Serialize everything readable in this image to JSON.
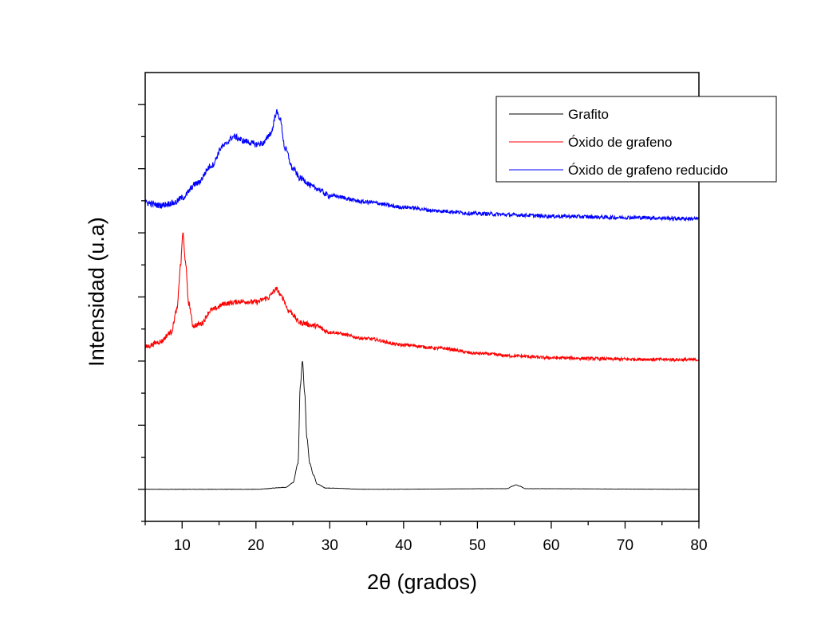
{
  "chart_data": {
    "type": "line",
    "title": "",
    "xlabel": "2θ (grados)",
    "ylabel": "Intensidad (u.a)",
    "xlim": [
      5,
      80
    ],
    "ylim": [
      -0.5,
      6.5
    ],
    "x_ticks": [
      10,
      20,
      30,
      40,
      50,
      60,
      70,
      80
    ],
    "x_tick_labels": [
      "10",
      "20",
      "30",
      "40",
      "50",
      "60",
      "70",
      "80"
    ],
    "y_tick_labels_shown": false,
    "grid": false,
    "legend_position": "top-right",
    "series": [
      {
        "name": "Grafito",
        "color": "#000000",
        "noise": 0.002,
        "points": [
          [
            5,
            0
          ],
          [
            20,
            0.0
          ],
          [
            24,
            0.03
          ],
          [
            25,
            0.1
          ],
          [
            25.7,
            0.4
          ],
          [
            26.0,
            1.6
          ],
          [
            26.3,
            2.0
          ],
          [
            26.6,
            1.5
          ],
          [
            26.9,
            0.8
          ],
          [
            27.3,
            0.4
          ],
          [
            27.8,
            0.22
          ],
          [
            28.3,
            0.08
          ],
          [
            29.5,
            0.02
          ],
          [
            35,
            0
          ],
          [
            54,
            0.01
          ],
          [
            54.8,
            0.05
          ],
          [
            55.2,
            0.07
          ],
          [
            55.7,
            0.05
          ],
          [
            56.5,
            0.01
          ],
          [
            80,
            0
          ]
        ]
      },
      {
        "name": "Óxido de grafeno",
        "color": "#ff0000",
        "noise": 0.025,
        "points": [
          [
            5,
            2.22
          ],
          [
            7,
            2.3
          ],
          [
            8.5,
            2.45
          ],
          [
            9.3,
            2.8
          ],
          [
            9.8,
            3.5
          ],
          [
            10.1,
            4.0
          ],
          [
            10.4,
            3.6
          ],
          [
            10.9,
            2.9
          ],
          [
            11.5,
            2.55
          ],
          [
            12.5,
            2.58
          ],
          [
            14,
            2.8
          ],
          [
            16,
            2.9
          ],
          [
            18,
            2.93
          ],
          [
            20,
            2.92
          ],
          [
            21.5,
            2.98
          ],
          [
            22.8,
            3.12
          ],
          [
            23.5,
            3.0
          ],
          [
            24.5,
            2.78
          ],
          [
            26,
            2.6
          ],
          [
            28,
            2.55
          ],
          [
            30,
            2.45
          ],
          [
            35,
            2.35
          ],
          [
            40,
            2.25
          ],
          [
            45,
            2.2
          ],
          [
            50,
            2.12
          ],
          [
            55,
            2.08
          ],
          [
            60,
            2.05
          ],
          [
            70,
            2.03
          ],
          [
            80,
            2.02
          ]
        ]
      },
      {
        "name": "Óxido de grafeno reducido",
        "color": "#0000ff",
        "noise": 0.03,
        "points": [
          [
            5,
            4.47
          ],
          [
            7,
            4.43
          ],
          [
            9,
            4.47
          ],
          [
            10,
            4.55
          ],
          [
            12,
            4.77
          ],
          [
            14,
            5.05
          ],
          [
            15.5,
            5.35
          ],
          [
            17,
            5.5
          ],
          [
            18.5,
            5.43
          ],
          [
            20,
            5.38
          ],
          [
            21,
            5.4
          ],
          [
            22,
            5.55
          ],
          [
            22.8,
            5.88
          ],
          [
            23.2,
            5.8
          ],
          [
            24,
            5.3
          ],
          [
            25,
            5.0
          ],
          [
            26,
            4.85
          ],
          [
            28,
            4.7
          ],
          [
            30,
            4.58
          ],
          [
            35,
            4.48
          ],
          [
            40,
            4.4
          ],
          [
            45,
            4.34
          ],
          [
            50,
            4.3
          ],
          [
            55,
            4.28
          ],
          [
            60,
            4.26
          ],
          [
            70,
            4.24
          ],
          [
            80,
            4.22
          ]
        ]
      }
    ]
  }
}
